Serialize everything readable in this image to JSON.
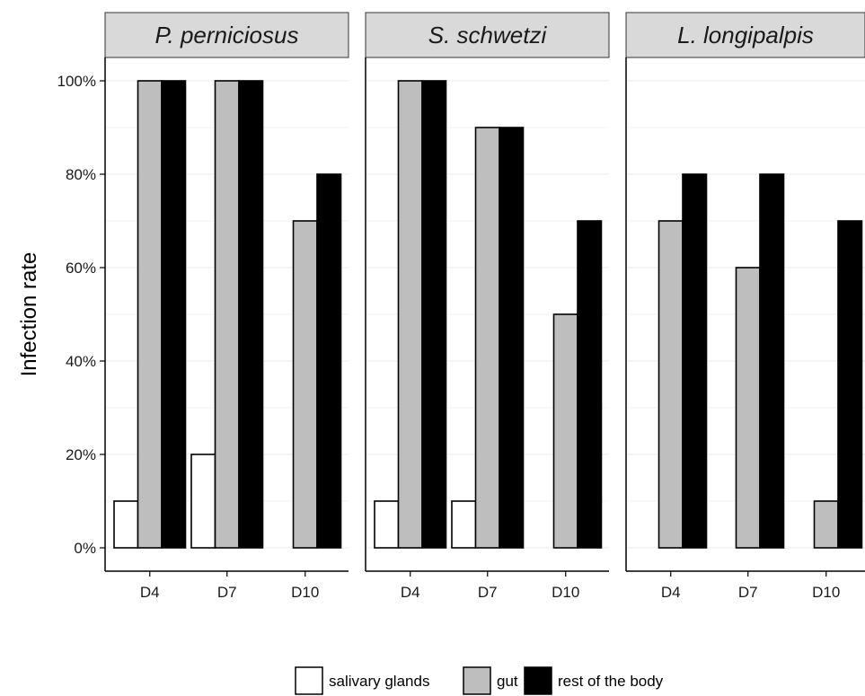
{
  "chart_data": {
    "type": "bar",
    "layout": "faceted",
    "ylabel": "Infection rate",
    "xlabel": "",
    "ylim": [
      0,
      100
    ],
    "y_ticks": [
      "0%",
      "20%",
      "40%",
      "60%",
      "80%",
      "100%"
    ],
    "y_tick_values": [
      0,
      20,
      40,
      60,
      80,
      100
    ],
    "categories": [
      "D4",
      "D7",
      "D10"
    ],
    "series_names": [
      "salivary glands",
      "gut",
      "rest of the body"
    ],
    "series_colors": [
      "#ffffff",
      "#bebebe",
      "#000000"
    ],
    "grid": true,
    "legend_position": "bottom",
    "facets": [
      {
        "title": "P. perniciosus",
        "series": [
          {
            "name": "salivary glands",
            "values": [
              10,
              20,
              0
            ]
          },
          {
            "name": "gut",
            "values": [
              100,
              100,
              70
            ]
          },
          {
            "name": "rest of the body",
            "values": [
              100,
              100,
              80
            ]
          }
        ]
      },
      {
        "title": "S. schwetzi",
        "series": [
          {
            "name": "salivary glands",
            "values": [
              10,
              10,
              0
            ]
          },
          {
            "name": "gut",
            "values": [
              100,
              90,
              50
            ]
          },
          {
            "name": "rest of the body",
            "values": [
              100,
              90,
              70
            ]
          }
        ]
      },
      {
        "title": "L. longipalpis",
        "series": [
          {
            "name": "salivary glands",
            "values": [
              0,
              0,
              0
            ]
          },
          {
            "name": "gut",
            "values": [
              70,
              60,
              10
            ]
          },
          {
            "name": "rest of the body",
            "values": [
              80,
              80,
              70
            ]
          }
        ]
      }
    ]
  }
}
